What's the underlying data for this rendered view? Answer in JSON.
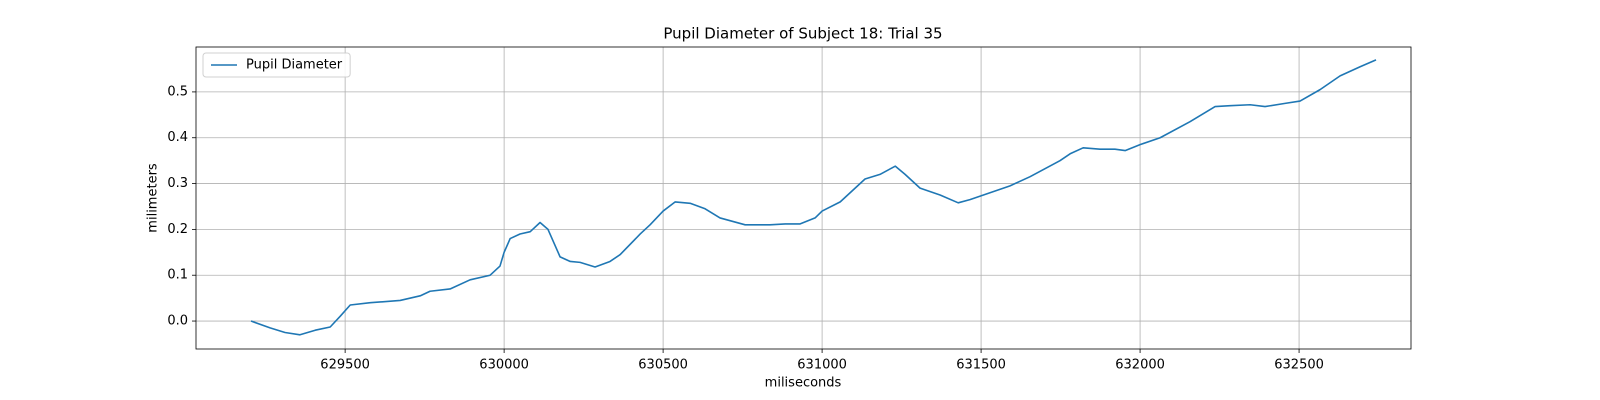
{
  "chart_data": {
    "type": "line",
    "title": "Pupil Diameter of Subject 18: Trial 35",
    "xlabel": "miliseconds",
    "ylabel": "milimeters",
    "xlim": [
      629031,
      632852
    ],
    "ylim": [
      -0.061,
      0.598
    ],
    "xticks": [
      629500,
      630000,
      630500,
      631000,
      631500,
      632000,
      632500
    ],
    "yticks": [
      {
        "value": 0,
        "label": "0.0"
      },
      0.1,
      0.2,
      0.3,
      0.4,
      0.5
    ],
    "grid": true,
    "legend": "upper left",
    "x": [
      629204,
      629264,
      629311,
      629358,
      629406,
      629453,
      629484,
      629516,
      629579,
      629673,
      629736,
      629767,
      629830,
      629893,
      629956,
      629987,
      630000,
      630019,
      630050,
      630082,
      630113,
      630138,
      630176,
      630208,
      630239,
      630286,
      630333,
      630365,
      630428,
      630459,
      630500,
      630538,
      630585,
      630632,
      630679,
      630758,
      630836,
      630884,
      630931,
      630978,
      631000,
      631057,
      631135,
      631182,
      631230,
      631261,
      631308,
      631371,
      631428,
      631465,
      631528,
      631591,
      631654,
      631748,
      631780,
      631821,
      631874,
      631921,
      631953,
      632000,
      632063,
      632157,
      632236,
      632283,
      632346,
      632393,
      632456,
      632503,
      632566,
      632629,
      632692,
      632742
    ],
    "series": [
      {
        "name": "Pupil Diameter",
        "color": "#1f77b4",
        "values": [
          0.0,
          -0.015,
          -0.025,
          -0.03,
          -0.02,
          -0.013,
          0.01,
          0.035,
          0.04,
          0.045,
          0.055,
          0.065,
          0.07,
          0.09,
          0.1,
          0.12,
          0.15,
          0.18,
          0.19,
          0.195,
          0.215,
          0.2,
          0.14,
          0.13,
          0.128,
          0.118,
          0.13,
          0.145,
          0.19,
          0.21,
          0.24,
          0.26,
          0.257,
          0.245,
          0.225,
          0.21,
          0.21,
          0.212,
          0.212,
          0.225,
          0.24,
          0.26,
          0.31,
          0.32,
          0.338,
          0.32,
          0.29,
          0.275,
          0.258,
          0.265,
          0.28,
          0.295,
          0.315,
          0.35,
          0.365,
          0.378,
          0.375,
          0.375,
          0.372,
          0.385,
          0.4,
          0.435,
          0.468,
          0.47,
          0.472,
          0.468,
          0.475,
          0.48,
          0.505,
          0.535,
          0.555,
          0.57
        ]
      }
    ]
  }
}
